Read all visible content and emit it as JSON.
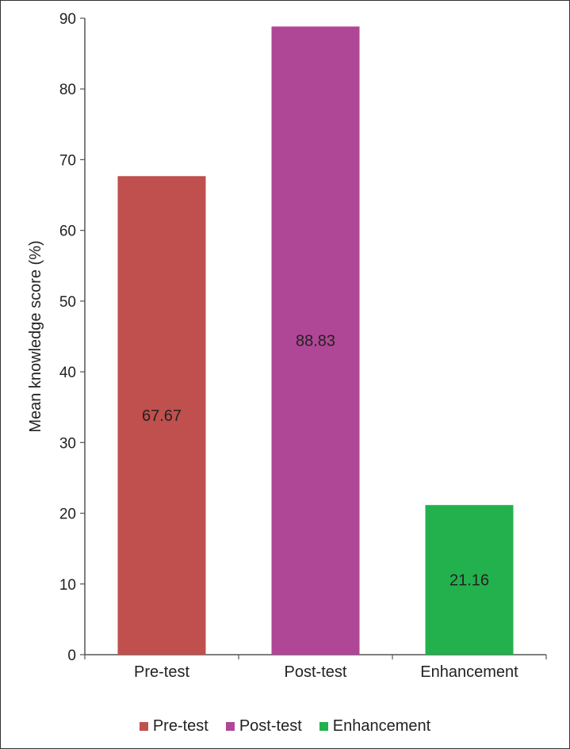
{
  "chart_data": {
    "type": "bar",
    "categories": [
      "Pre-test",
      "Post-test",
      "Enhancement"
    ],
    "values": [
      67.67,
      88.83,
      21.16
    ],
    "data_labels": [
      "67.67",
      "88.83",
      "21.16"
    ],
    "colors": [
      "#c0504d",
      "#b04696",
      "#22b14c"
    ],
    "title": "",
    "xlabel": "",
    "ylabel": "Mean knowledge score (%)",
    "ylim": [
      0,
      90
    ],
    "yticks": [
      "0",
      "10",
      "20",
      "30",
      "40",
      "50",
      "60",
      "70",
      "80",
      "90"
    ],
    "grid": false,
    "legend_position": "bottom-center"
  }
}
